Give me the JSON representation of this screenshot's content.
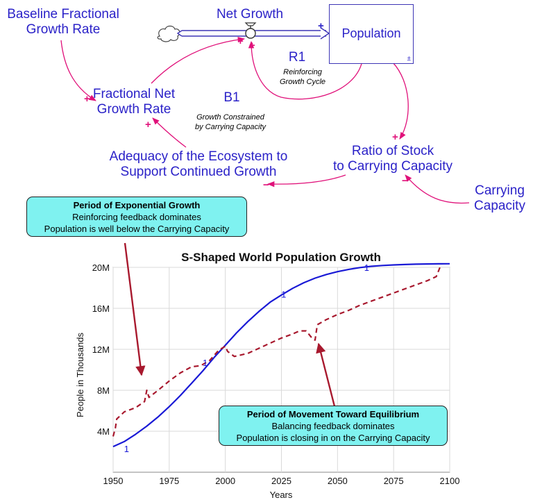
{
  "diagram": {
    "baseline_rate": "Baseline Fractional\nGrowth Rate",
    "net_growth": "Net Growth",
    "population": "Population",
    "stock_sign": "±",
    "fractional_rate": "Fractional Net\nGrowth Rate",
    "adequacy": "Adequacy of the Ecosystem to\nSupport Continued Growth",
    "ratio": "Ratio of Stock\nto Carrying Capacity",
    "carrying": "Carrying\nCapacity",
    "r1": "R1",
    "r1_desc": "Reinforcing\nGrowth Cycle",
    "b1": "B1",
    "b1_desc": "Growth Constrained\nby Carrying Capacity",
    "pol_pos": "+",
    "pol_neg": "−",
    "colors": {
      "variable": "#2b22c8",
      "link": "#e0117a"
    }
  },
  "callout_exponential": {
    "title": "Period of Exponential Growth",
    "line1": "Reinforcing feedback dominates",
    "line2": "Population is well below the Carrying Capacity"
  },
  "callout_equilibrium": {
    "title": "Period of Movement Toward Equilibrium",
    "line1": "Balancing feedback dominates",
    "line2": "Population is closing in on the Carrying Capacity"
  },
  "chart_data": {
    "type": "line",
    "title": "S-Shaped World Population Growth",
    "xlabel": "Years",
    "ylabel": "People in Thousands",
    "xlim": [
      1950,
      2100
    ],
    "ylim": [
      0,
      20000000
    ],
    "xticks": [
      1950,
      1975,
      2000,
      2025,
      2050,
      2075,
      2100
    ],
    "yticks": [
      4000000,
      8000000,
      12000000,
      16000000,
      20000000
    ],
    "ytick_labels": [
      "4M",
      "8M",
      "12M",
      "16M",
      "20M"
    ],
    "grid": true,
    "series": [
      {
        "label_marker": "1",
        "color": "#1a1ad6",
        "style": "solid",
        "x": [
          1950,
          1955,
          1960,
          1965,
          1970,
          1975,
          1980,
          1985,
          1990,
          1995,
          2000,
          2005,
          2010,
          2015,
          2020,
          2025,
          2030,
          2035,
          2040,
          2045,
          2050,
          2055,
          2060,
          2065,
          2070,
          2075,
          2080,
          2085,
          2090,
          2095,
          2100
        ],
        "y": [
          2500000,
          3000000,
          3700000,
          4500000,
          5400000,
          6400000,
          7500000,
          8700000,
          9900000,
          11200000,
          12400000,
          13600000,
          14700000,
          15700000,
          16600000,
          17300000,
          17950000,
          18500000,
          18950000,
          19300000,
          19580000,
          19800000,
          19980000,
          20100000,
          20180000,
          20240000,
          20280000,
          20310000,
          20330000,
          20345000,
          20355000
        ]
      },
      {
        "color": "#a8192e",
        "style": "dashed",
        "x": [
          1950,
          1951,
          1951.6,
          1955,
          1960,
          1964,
          1965,
          1966,
          1970,
          1975,
          1980,
          1985,
          1989,
          1993,
          1997,
          2000,
          2001,
          2004,
          2010,
          2015,
          2020,
          2025,
          2030,
          2033,
          2036,
          2039,
          2040,
          2041,
          2045,
          2050,
          2055,
          2060,
          2065,
          2070,
          2075,
          2080,
          2085,
          2090,
          2094,
          2096
        ],
        "y": [
          3500000,
          4300000,
          5200000,
          5900000,
          6300000,
          6900000,
          8000000,
          7300000,
          8000000,
          8900000,
          9700000,
          10300000,
          10400000,
          10900000,
          11900000,
          12300000,
          11800000,
          11300000,
          11600000,
          12100000,
          12600000,
          13100000,
          13500000,
          13800000,
          13800000,
          13000000,
          12900000,
          14400000,
          14900000,
          15400000,
          15800000,
          16300000,
          16700000,
          17100000,
          17500000,
          17900000,
          18300000,
          18700000,
          19100000,
          20200000
        ]
      }
    ],
    "annotations": [
      {
        "text": "1",
        "x": 1956,
        "y": 2300000
      },
      {
        "text": "1",
        "x": 1991,
        "y": 10700000
      },
      {
        "text": "1",
        "x": 2026,
        "y": 17400000
      },
      {
        "text": "1",
        "x": 2063,
        "y": 20000000
      }
    ],
    "callout_targets": [
      {
        "callout": "exponential",
        "x": 1963,
        "y": 8100000
      },
      {
        "callout": "equilibrium",
        "x": 2041,
        "y": 12200000
      }
    ]
  }
}
